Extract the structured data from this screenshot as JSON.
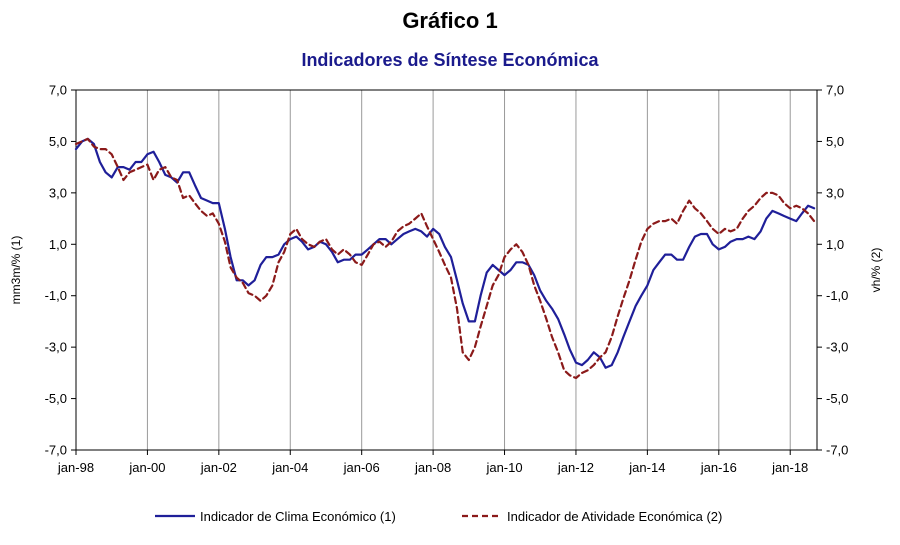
{
  "chart_data": {
    "type": "line",
    "title": "Gráfico 1",
    "subtitle": "Indicadores de Síntese Económica",
    "ylabel_left": "mm3m/% (1)",
    "ylabel_right": "vh/% (2)",
    "ylim": [
      -7,
      7
    ],
    "y_ticks": [
      "7,0",
      "5,0",
      "3,0",
      "1,0",
      "-1,0",
      "-3,0",
      "-5,0",
      "-7,0"
    ],
    "y_tick_values": [
      7,
      5,
      3,
      1,
      -1,
      -3,
      -5,
      -7
    ],
    "x_range": [
      1998.0,
      2018.75
    ],
    "x_ticks": [
      "jan-98",
      "jan-00",
      "jan-02",
      "jan-04",
      "jan-06",
      "jan-08",
      "jan-10",
      "jan-12",
      "jan-14",
      "jan-16",
      "jan-18"
    ],
    "x_tick_values": [
      1998,
      2000,
      2002,
      2004,
      2006,
      2008,
      2010,
      2012,
      2014,
      2016,
      2018
    ],
    "grid": "vertical lines at x ticks",
    "legend_position": "bottom",
    "series": [
      {
        "name": "Indicador de Clima Económico (1)",
        "style": "solid",
        "color": "#1f1f99",
        "x": [
          1998.0,
          1998.17,
          1998.33,
          1998.5,
          1998.67,
          1998.83,
          1999.0,
          1999.17,
          1999.33,
          1999.5,
          1999.67,
          1999.83,
          2000.0,
          2000.17,
          2000.33,
          2000.5,
          2000.67,
          2000.83,
          2001.0,
          2001.17,
          2001.33,
          2001.5,
          2001.67,
          2001.83,
          2002.0,
          2002.17,
          2002.33,
          2002.5,
          2002.67,
          2002.83,
          2003.0,
          2003.17,
          2003.33,
          2003.5,
          2003.67,
          2003.83,
          2004.0,
          2004.17,
          2004.33,
          2004.5,
          2004.67,
          2004.83,
          2005.0,
          2005.17,
          2005.33,
          2005.5,
          2005.67,
          2005.83,
          2006.0,
          2006.17,
          2006.33,
          2006.5,
          2006.67,
          2006.83,
          2007.0,
          2007.17,
          2007.33,
          2007.5,
          2007.67,
          2007.83,
          2008.0,
          2008.17,
          2008.33,
          2008.5,
          2008.67,
          2008.83,
          2009.0,
          2009.17,
          2009.33,
          2009.5,
          2009.67,
          2009.83,
          2010.0,
          2010.17,
          2010.33,
          2010.5,
          2010.67,
          2010.83,
          2011.0,
          2011.17,
          2011.33,
          2011.5,
          2011.67,
          2011.83,
          2012.0,
          2012.17,
          2012.33,
          2012.5,
          2012.67,
          2012.83,
          2013.0,
          2013.17,
          2013.33,
          2013.5,
          2013.67,
          2013.83,
          2014.0,
          2014.17,
          2014.33,
          2014.5,
          2014.67,
          2014.83,
          2015.0,
          2015.17,
          2015.33,
          2015.5,
          2015.67,
          2015.83,
          2016.0,
          2016.17,
          2016.33,
          2016.5,
          2016.67,
          2016.83,
          2017.0,
          2017.17,
          2017.33,
          2017.5,
          2017.67,
          2017.83,
          2018.0,
          2018.17,
          2018.33,
          2018.5,
          2018.67
        ],
        "values": [
          4.7,
          5.0,
          5.1,
          4.9,
          4.2,
          3.8,
          3.6,
          4.0,
          4.0,
          3.9,
          4.2,
          4.2,
          4.5,
          4.6,
          4.2,
          3.7,
          3.6,
          3.4,
          3.8,
          3.8,
          3.3,
          2.8,
          2.7,
          2.6,
          2.6,
          1.6,
          0.5,
          -0.4,
          -0.4,
          -0.6,
          -0.4,
          0.2,
          0.5,
          0.5,
          0.6,
          1.0,
          1.2,
          1.3,
          1.1,
          0.8,
          0.9,
          1.1,
          1.0,
          0.7,
          0.3,
          0.4,
          0.4,
          0.6,
          0.6,
          0.8,
          1.0,
          1.2,
          1.2,
          1.0,
          1.2,
          1.4,
          1.5,
          1.6,
          1.5,
          1.3,
          1.6,
          1.4,
          0.9,
          0.5,
          -0.4,
          -1.3,
          -2.0,
          -2.0,
          -1.0,
          -0.1,
          0.2,
          0.0,
          -0.2,
          0.0,
          0.3,
          0.3,
          0.2,
          -0.2,
          -0.8,
          -1.2,
          -1.5,
          -1.9,
          -2.5,
          -3.1,
          -3.6,
          -3.7,
          -3.5,
          -3.2,
          -3.4,
          -3.8,
          -3.7,
          -3.2,
          -2.6,
          -2.0,
          -1.4,
          -1.0,
          -0.6,
          0.0,
          0.3,
          0.6,
          0.6,
          0.4,
          0.4,
          0.9,
          1.3,
          1.4,
          1.4,
          1.0,
          0.8,
          0.9,
          1.1,
          1.2,
          1.2,
          1.3,
          1.2,
          1.5,
          2.0,
          2.3,
          2.2,
          2.1,
          2.0,
          1.9,
          2.2,
          2.5,
          2.4
        ],
        "_note": "values in data units read off the left axis"
      },
      {
        "name": "Indicador de Atividade Económica (2)",
        "style": "dashed",
        "color": "#8b1a1a",
        "x": [
          1998.0,
          1998.17,
          1998.33,
          1998.5,
          1998.67,
          1998.83,
          1999.0,
          1999.17,
          1999.33,
          1999.5,
          1999.67,
          1999.83,
          2000.0,
          2000.17,
          2000.33,
          2000.5,
          2000.67,
          2000.83,
          2001.0,
          2001.17,
          2001.33,
          2001.5,
          2001.67,
          2001.83,
          2002.0,
          2002.17,
          2002.33,
          2002.5,
          2002.67,
          2002.83,
          2003.0,
          2003.17,
          2003.33,
          2003.5,
          2003.67,
          2003.83,
          2004.0,
          2004.17,
          2004.33,
          2004.5,
          2004.67,
          2004.83,
          2005.0,
          2005.17,
          2005.33,
          2005.5,
          2005.67,
          2005.83,
          2006.0,
          2006.17,
          2006.33,
          2006.5,
          2006.67,
          2006.83,
          2007.0,
          2007.17,
          2007.33,
          2007.5,
          2007.67,
          2007.83,
          2008.0,
          2008.17,
          2008.33,
          2008.5,
          2008.67,
          2008.83,
          2009.0,
          2009.17,
          2009.33,
          2009.5,
          2009.67,
          2009.83,
          2010.0,
          2010.17,
          2010.33,
          2010.5,
          2010.67,
          2010.83,
          2011.0,
          2011.17,
          2011.33,
          2011.5,
          2011.67,
          2011.83,
          2012.0,
          2012.17,
          2012.33,
          2012.5,
          2012.67,
          2012.83,
          2013.0,
          2013.17,
          2013.33,
          2013.5,
          2013.67,
          2013.83,
          2014.0,
          2014.17,
          2014.33,
          2014.5,
          2014.67,
          2014.83,
          2015.0,
          2015.17,
          2015.33,
          2015.5,
          2015.67,
          2015.83,
          2016.0,
          2016.17,
          2016.33,
          2016.5,
          2016.67,
          2016.83,
          2017.0,
          2017.17,
          2017.33,
          2017.5,
          2017.67,
          2017.83,
          2018.0,
          2018.17,
          2018.33,
          2018.5,
          2018.67
        ],
        "values": [
          4.9,
          5.0,
          5.1,
          4.8,
          4.7,
          4.7,
          4.5,
          4.0,
          3.5,
          3.8,
          3.9,
          4.0,
          4.1,
          3.5,
          3.9,
          4.0,
          3.6,
          3.5,
          2.8,
          2.9,
          2.6,
          2.3,
          2.1,
          2.2,
          1.8,
          1.1,
          0.1,
          -0.3,
          -0.5,
          -0.9,
          -1.0,
          -1.2,
          -1.0,
          -0.6,
          0.3,
          0.7,
          1.4,
          1.6,
          1.2,
          1.0,
          0.9,
          1.1,
          1.2,
          0.8,
          0.6,
          0.8,
          0.6,
          0.3,
          0.2,
          0.6,
          1.0,
          1.1,
          0.9,
          1.1,
          1.5,
          1.7,
          1.8,
          2.0,
          2.2,
          1.7,
          1.2,
          0.7,
          0.2,
          -0.3,
          -1.5,
          -3.2,
          -3.5,
          -3.0,
          -2.2,
          -1.4,
          -0.6,
          -0.2,
          0.5,
          0.8,
          1.0,
          0.7,
          0.2,
          -0.6,
          -1.2,
          -1.9,
          -2.6,
          -3.2,
          -3.9,
          -4.1,
          -4.2,
          -4.0,
          -3.9,
          -3.7,
          -3.4,
          -3.2,
          -2.6,
          -1.8,
          -1.1,
          -0.4,
          0.4,
          1.1,
          1.6,
          1.8,
          1.9,
          1.9,
          2.0,
          1.8,
          2.3,
          2.7,
          2.4,
          2.2,
          1.9,
          1.6,
          1.4,
          1.6,
          1.5,
          1.6,
          2.0,
          2.3,
          2.5,
          2.8,
          3.0,
          3.0,
          2.9,
          2.6,
          2.4,
          2.5,
          2.4,
          2.2,
          1.9
        ],
        "_note": "values in data units read off the right axis"
      }
    ]
  }
}
